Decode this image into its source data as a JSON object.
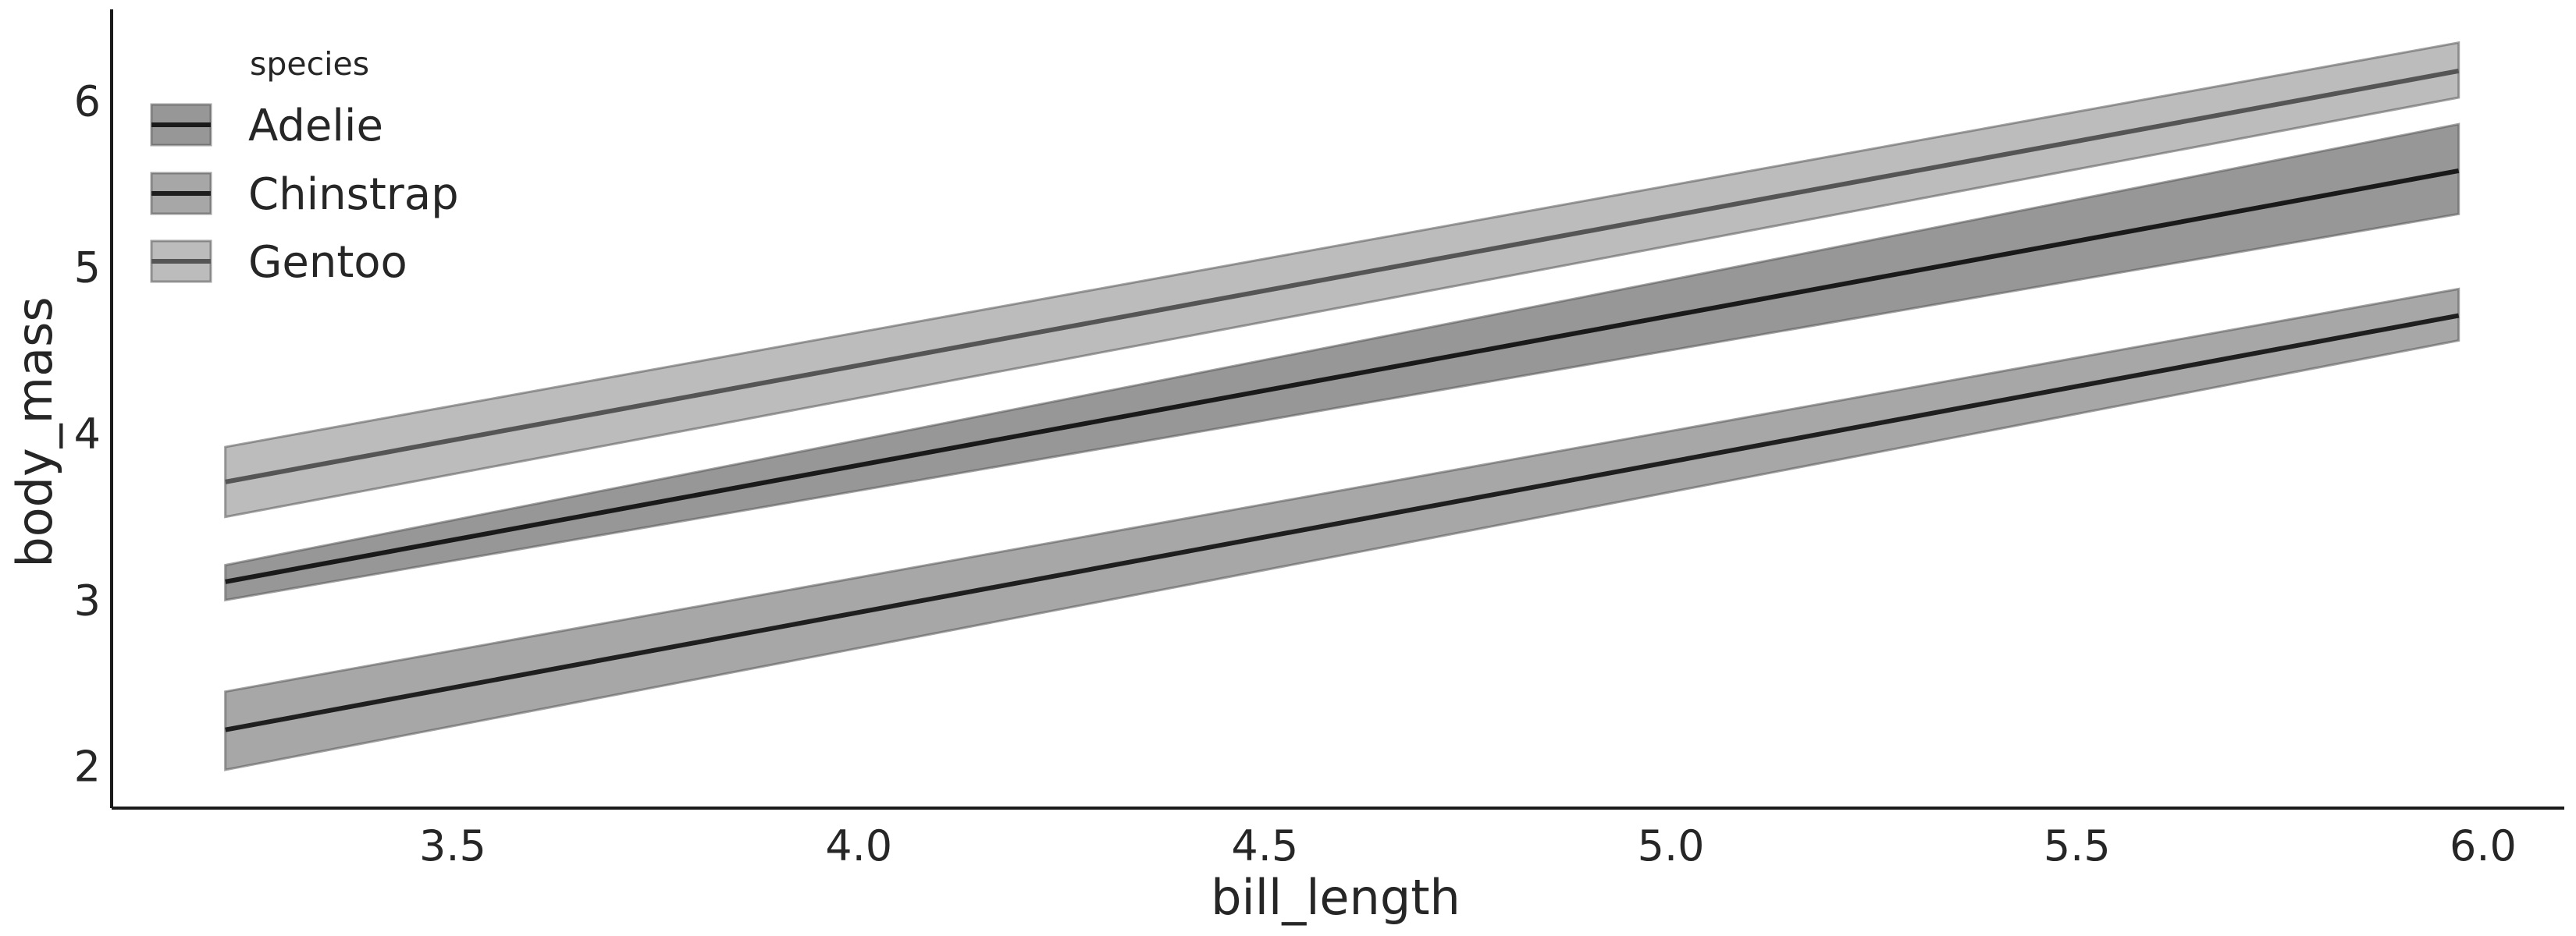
{
  "chart_data": {
    "type": "line",
    "xlabel": "bill_length",
    "ylabel": "body_mass",
    "xlim": [
      3.08,
      6.1
    ],
    "ylim": [
      1.75,
      6.55
    ],
    "xticks": [
      "3.5",
      "4.0",
      "4.5",
      "5.0",
      "5.5",
      "6.0"
    ],
    "yticks": [
      "2",
      "3",
      "4",
      "5",
      "6"
    ],
    "grid": false,
    "legend": {
      "title": "species",
      "position": "top-left"
    },
    "x": [
      3.22,
      5.97
    ],
    "series": [
      {
        "name": "Adelie",
        "values": [
          3.11,
          5.58
        ],
        "lower": [
          3.0,
          5.32
        ],
        "upper": [
          3.21,
          5.86
        ],
        "line_color": "#1a1a1a",
        "band_color": "#7a7a7a",
        "band_opacity": 0.78
      },
      {
        "name": "Chinstrap",
        "values": [
          2.22,
          4.71
        ],
        "lower": [
          1.98,
          4.56
        ],
        "upper": [
          2.45,
          4.87
        ],
        "line_color": "#1f1f1f",
        "band_color": "#8a8a8a",
        "band_opacity": 0.75
      },
      {
        "name": "Gentoo",
        "values": [
          3.71,
          6.18
        ],
        "lower": [
          3.5,
          6.02
        ],
        "upper": [
          3.92,
          6.35
        ],
        "line_color": "#555555",
        "band_color": "#a6a6a6",
        "band_opacity": 0.75
      }
    ]
  }
}
